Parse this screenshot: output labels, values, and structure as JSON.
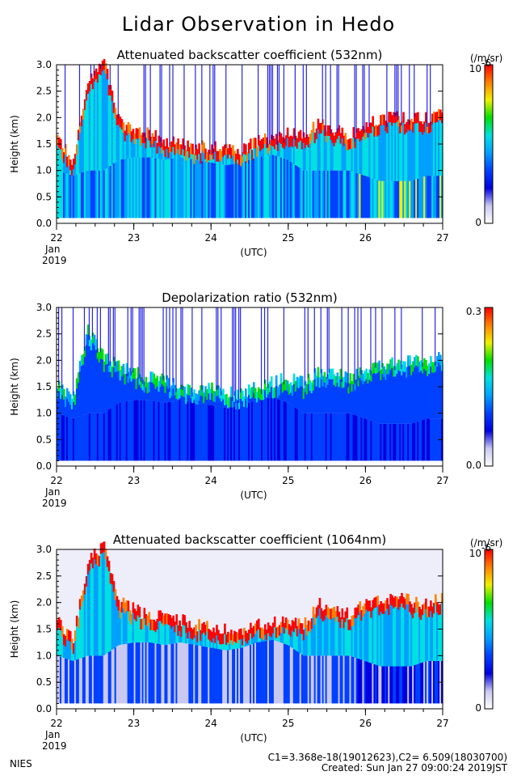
{
  "page": {
    "title": "Lidar Observation in Hedo",
    "footer_left": "NIES",
    "footer_line1": "C1=3.368e-18(19012623),C2= 6.509(18030700)",
    "footer_line2": "Created: Sun Jan 27 09:00:24 2019JST"
  },
  "colors": {
    "scale": [
      "#ffffff",
      "#c8c8f0",
      "#0000e0",
      "#0040ff",
      "#00a0ff",
      "#00e0e0",
      "#00e000",
      "#f0f000",
      "#ff8000",
      "#ff0000"
    ]
  },
  "chart_data": [
    {
      "type": "heatmap",
      "title": "Attenuated backscatter coefficient (532nm)",
      "ylabel": "Height (km)",
      "xlabel": "(UTC)",
      "x_ticks": [
        "22",
        "23",
        "24",
        "25",
        "26",
        "27"
      ],
      "x_sub": [
        "Jan",
        "2019"
      ],
      "y_ticks": [
        "0.0",
        "0.5",
        "1.0",
        "1.5",
        "2.0",
        "2.5",
        "3.0"
      ],
      "xlim": [
        22,
        27
      ],
      "ylim": [
        0,
        3
      ],
      "colorbar": {
        "min_label": "0",
        "max_label": "10",
        "max_exp": "-6",
        "unit": "(/m/sr)"
      },
      "layer_top_km": [
        1.55,
        1.1,
        2.6,
        3.0,
        1.85,
        1.7,
        1.6,
        1.5,
        1.42,
        1.35,
        1.4,
        1.3,
        1.3,
        1.5,
        1.55,
        1.65,
        1.6,
        1.8,
        1.7,
        1.6,
        1.8,
        1.9,
        1.95,
        1.9,
        1.9,
        2.0
      ],
      "layer_bottom_km": [
        1.0,
        0.9,
        1.0,
        1.0,
        1.2,
        1.25,
        1.25,
        1.2,
        1.25,
        1.2,
        1.15,
        1.1,
        1.15,
        1.25,
        1.3,
        1.2,
        1.0,
        1.0,
        1.0,
        1.0,
        0.9,
        0.8,
        0.8,
        0.8,
        0.9,
        0.9
      ]
    },
    {
      "type": "heatmap",
      "title": "Depolarization ratio (532nm)",
      "ylabel": "Height (km)",
      "xlabel": "(UTC)",
      "x_ticks": [
        "22",
        "23",
        "24",
        "25",
        "26",
        "27"
      ],
      "x_sub": [
        "Jan",
        "2019"
      ],
      "y_ticks": [
        "0.0",
        "0.5",
        "1.0",
        "1.5",
        "2.0",
        "2.5",
        "3.0"
      ],
      "xlim": [
        22,
        27
      ],
      "ylim": [
        0,
        3
      ],
      "colorbar": {
        "min_label": "0.0",
        "max_label": "0.3",
        "max_exp": "",
        "unit": ""
      },
      "layer_top_km": [
        1.5,
        1.2,
        2.5,
        2.0,
        1.8,
        1.7,
        1.6,
        1.55,
        1.45,
        1.35,
        1.4,
        1.3,
        1.3,
        1.45,
        1.5,
        1.6,
        1.5,
        1.7,
        1.7,
        1.6,
        1.7,
        1.8,
        1.9,
        1.9,
        1.9,
        2.0
      ],
      "layer_bottom_km": [
        1.0,
        0.9,
        1.0,
        1.0,
        1.2,
        1.25,
        1.25,
        1.2,
        1.25,
        1.2,
        1.15,
        1.1,
        1.15,
        1.25,
        1.3,
        1.2,
        1.0,
        1.0,
        1.0,
        1.0,
        0.9,
        0.8,
        0.8,
        0.8,
        0.9,
        0.9
      ]
    },
    {
      "type": "heatmap",
      "title": "Attenuated backscatter coefficient (1064nm)",
      "ylabel": "Height (km)",
      "xlabel": "(UTC)",
      "x_ticks": [
        "22",
        "23",
        "24",
        "25",
        "26",
        "27"
      ],
      "x_sub": [
        "Jan",
        "2019"
      ],
      "y_ticks": [
        "0.0",
        "0.5",
        "1.0",
        "1.5",
        "2.0",
        "2.5",
        "3.0"
      ],
      "xlim": [
        22,
        27
      ],
      "ylim": [
        0,
        3
      ],
      "colorbar": {
        "min_label": "0",
        "max_label": "10",
        "max_exp": "-6",
        "unit": "(/m/sr)"
      },
      "layer_top_km": [
        1.6,
        1.2,
        2.7,
        3.0,
        1.95,
        1.8,
        1.65,
        1.7,
        1.6,
        1.5,
        1.45,
        1.4,
        1.35,
        1.5,
        1.55,
        1.6,
        1.5,
        1.9,
        1.8,
        1.7,
        1.9,
        1.95,
        2.0,
        1.95,
        1.9,
        2.0
      ],
      "layer_bottom_km": [
        1.0,
        0.9,
        1.0,
        1.0,
        1.2,
        1.25,
        1.25,
        1.2,
        1.25,
        1.2,
        1.15,
        1.1,
        1.15,
        1.25,
        1.3,
        1.2,
        1.0,
        1.0,
        1.0,
        1.0,
        0.9,
        0.8,
        0.8,
        0.8,
        0.9,
        0.9
      ]
    }
  ]
}
